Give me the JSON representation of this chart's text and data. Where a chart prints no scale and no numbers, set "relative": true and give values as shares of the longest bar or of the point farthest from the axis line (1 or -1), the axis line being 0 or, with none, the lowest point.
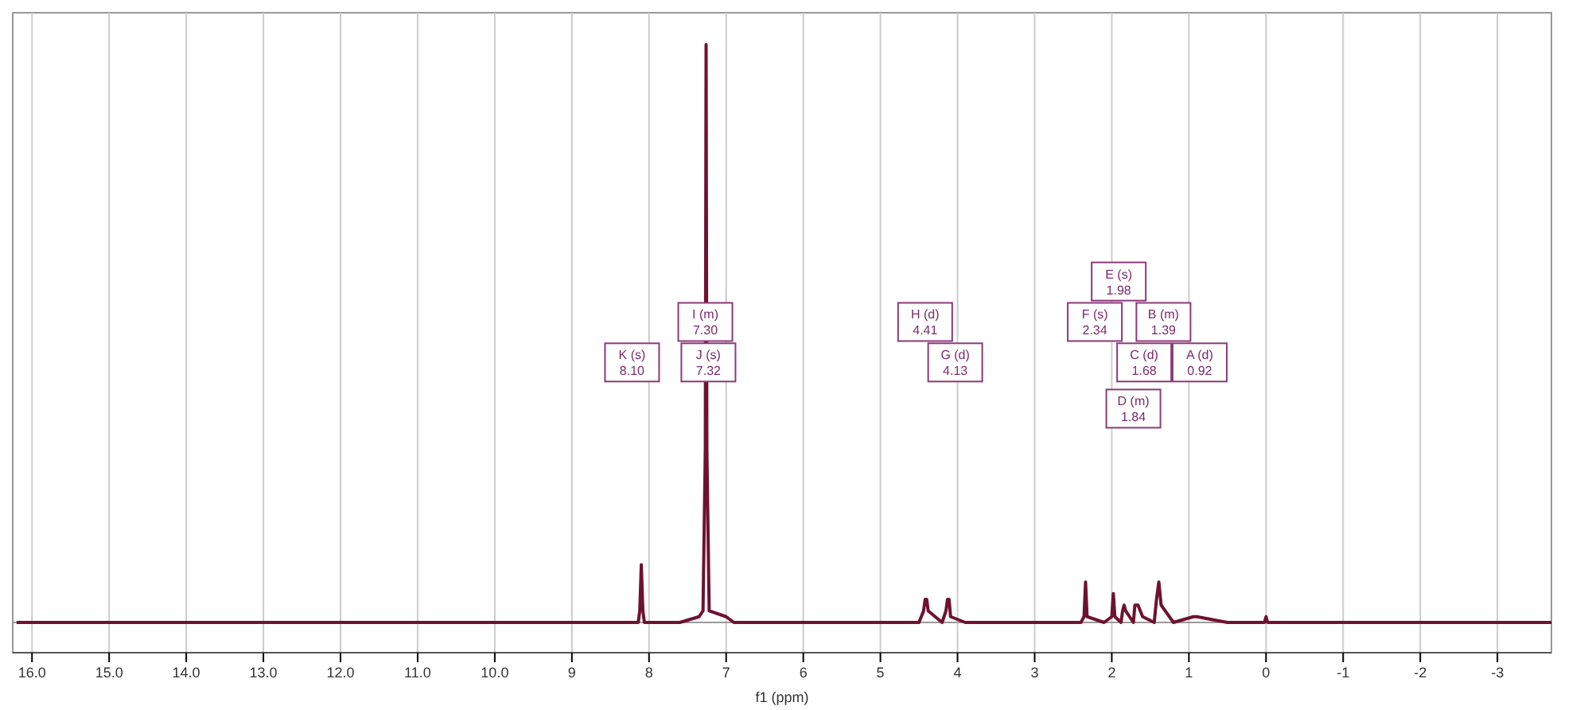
{
  "chart_data": {
    "type": "line",
    "relative": true,
    "xlabel": "f1 (ppm)",
    "xlim": [
      16.25,
      -3.7
    ],
    "xticks": [
      {
        "value": 16,
        "label": "16.0"
      },
      {
        "value": 15,
        "label": "15.0"
      },
      {
        "value": 14,
        "label": "14.0"
      },
      {
        "value": 13,
        "label": "13.0"
      },
      {
        "value": 12,
        "label": "12.0"
      },
      {
        "value": 11,
        "label": "11.0"
      },
      {
        "value": 10,
        "label": "10.0"
      },
      9,
      8,
      7,
      6,
      5,
      4,
      3,
      2,
      1,
      0,
      -1,
      -2,
      -3
    ],
    "grid": "x",
    "marker": "none",
    "line_style": "solid",
    "series": [
      {
        "color": "#6e1230",
        "x": [
          16.2,
          9.5,
          8.14,
          8.12,
          8.1,
          8.08,
          8.06,
          7.6,
          7.35,
          7.3,
          7.27,
          7.26,
          7.25,
          7.22,
          7.0,
          6.9,
          4.5,
          4.44,
          4.42,
          4.4,
          4.38,
          4.2,
          4.15,
          4.13,
          4.11,
          4.09,
          3.9,
          2.4,
          2.36,
          2.34,
          2.32,
          2.1,
          2.0,
          1.98,
          1.96,
          1.88,
          1.86,
          1.84,
          1.82,
          1.72,
          1.7,
          1.66,
          1.6,
          1.45,
          1.42,
          1.39,
          1.36,
          1.2,
          0.94,
          0.9,
          0.5,
          0.02,
          0.0,
          -0.02,
          -3.7
        ],
        "values": [
          0,
          0,
          0,
          0.02,
          0.1,
          0.02,
          0,
          0,
          0.01,
          0.02,
          0.3,
          1,
          0.3,
          0.02,
          0.01,
          0,
          0,
          0.02,
          0.04,
          0.04,
          0.02,
          0,
          0.02,
          0.04,
          0.04,
          0.01,
          0,
          0,
          0.01,
          0.07,
          0.01,
          0,
          0.01,
          0.05,
          0.01,
          0,
          0.02,
          0.03,
          0.02,
          0,
          0.03,
          0.03,
          0.01,
          0,
          0.04,
          0.07,
          0.03,
          0,
          0.01,
          0.01,
          0,
          0,
          0.01,
          0,
          0
        ]
      }
    ],
    "annotations": [
      {
        "text": "K (s)\n8.10",
        "x": 8.22,
        "y": 0.45
      },
      {
        "text": "I (m)\n7.30",
        "x": 7.27,
        "y": 0.52
      },
      {
        "text": "J (s)\n7.32",
        "x": 7.23,
        "y": 0.45
      },
      {
        "text": "H (d)\n4.41",
        "x": 4.42,
        "y": 0.52
      },
      {
        "text": "G (d)\n4.13",
        "x": 4.03,
        "y": 0.45
      },
      {
        "text": "E (s)\n1.98",
        "x": 1.91,
        "y": 0.59
      },
      {
        "text": "F (s)\n2.34",
        "x": 2.22,
        "y": 0.52
      },
      {
        "text": "B (m)\n1.39",
        "x": 1.33,
        "y": 0.52
      },
      {
        "text": "C (d)\n1.68",
        "x": 1.58,
        "y": 0.45
      },
      {
        "text": "A (d)\n0.92",
        "x": 0.86,
        "y": 0.45
      },
      {
        "text": "D (m)\n1.84",
        "x": 1.72,
        "y": 0.37
      }
    ]
  }
}
